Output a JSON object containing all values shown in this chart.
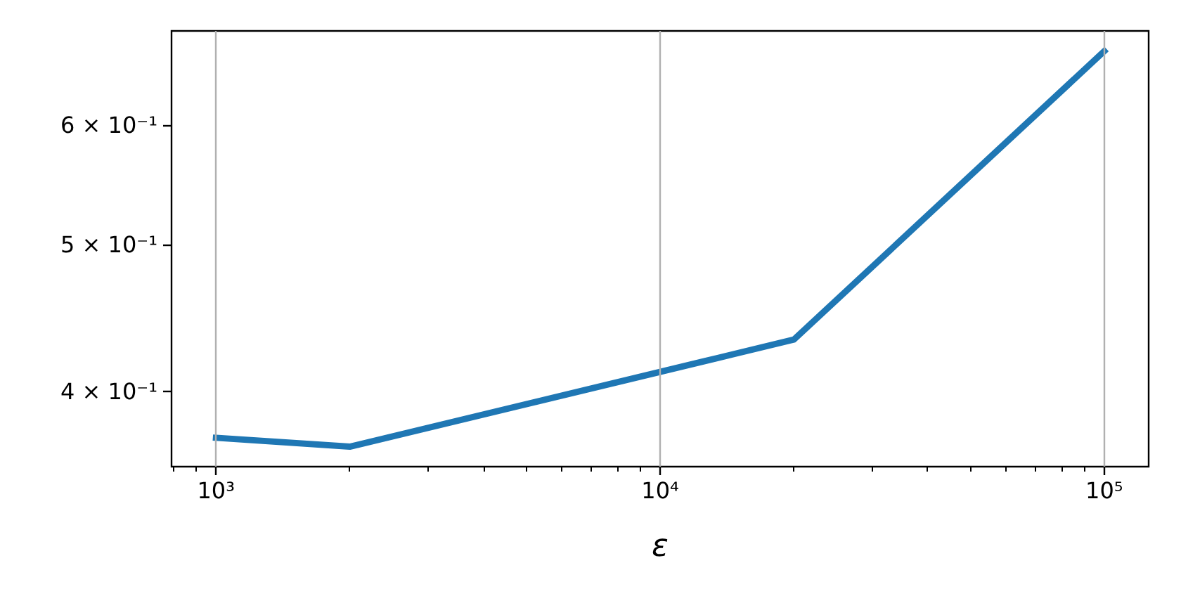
{
  "chart_data": {
    "type": "line",
    "xlabel": "ε",
    "x": [
      1000,
      2000,
      20000,
      100000
    ],
    "series": [
      {
        "color": "#1f77b4",
        "values": [
          0.373,
          0.368,
          0.433,
          0.671
        ]
      }
    ],
    "log": "xy",
    "xlim": [
      794,
      125900
    ],
    "ylim": [
      0.357,
      0.692
    ],
    "xticks": [
      {
        "value": 800,
        "label": null
      },
      {
        "value": 900,
        "label": null
      },
      {
        "value": 1000,
        "label": "10³"
      },
      {
        "value": 2000,
        "label": null
      },
      {
        "value": 3000,
        "label": null
      },
      {
        "value": 4000,
        "label": null
      },
      {
        "value": 5000,
        "label": null
      },
      {
        "value": 6000,
        "label": null
      },
      {
        "value": 7000,
        "label": null
      },
      {
        "value": 8000,
        "label": null
      },
      {
        "value": 9000,
        "label": null
      },
      {
        "value": 10000,
        "label": "10⁴"
      },
      {
        "value": 20000,
        "label": null
      },
      {
        "value": 30000,
        "label": null
      },
      {
        "value": 40000,
        "label": null
      },
      {
        "value": 50000,
        "label": null
      },
      {
        "value": 60000,
        "label": null
      },
      {
        "value": 70000,
        "label": null
      },
      {
        "value": 80000,
        "label": null
      },
      {
        "value": 90000,
        "label": null
      },
      {
        "value": 100000,
        "label": "10⁵"
      }
    ],
    "yticks": [
      {
        "value": 0.4,
        "label": "4 × 10⁻¹"
      },
      {
        "value": 0.5,
        "label": "5 × 10⁻¹"
      },
      {
        "value": 0.6,
        "label": "6 × 10⁻¹"
      }
    ],
    "grid": "x",
    "marker": "none",
    "line_style": "solid"
  }
}
